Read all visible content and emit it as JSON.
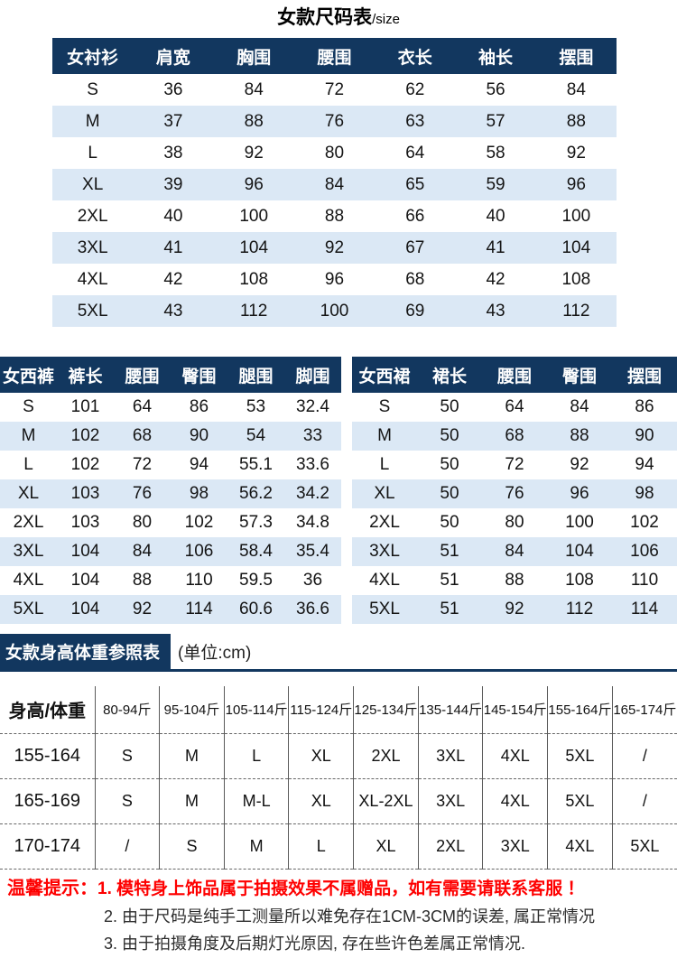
{
  "title": {
    "main": "女款尺码表",
    "suffix": "/size"
  },
  "shirt_table": {
    "headers": [
      "女衬衫",
      "肩宽",
      "胸围",
      "腰围",
      "衣长",
      "袖长",
      "摆围"
    ],
    "rows": [
      [
        "S",
        "36",
        "84",
        "72",
        "62",
        "56",
        "84"
      ],
      [
        "M",
        "37",
        "88",
        "76",
        "63",
        "57",
        "88"
      ],
      [
        "L",
        "38",
        "92",
        "80",
        "64",
        "58",
        "92"
      ],
      [
        "XL",
        "39",
        "96",
        "84",
        "65",
        "59",
        "96"
      ],
      [
        "2XL",
        "40",
        "100",
        "88",
        "66",
        "40",
        "100"
      ],
      [
        "3XL",
        "41",
        "104",
        "92",
        "67",
        "41",
        "104"
      ],
      [
        "4XL",
        "42",
        "108",
        "96",
        "68",
        "42",
        "108"
      ],
      [
        "5XL",
        "43",
        "112",
        "100",
        "69",
        "43",
        "112"
      ]
    ]
  },
  "trousers_table": {
    "headers": [
      "女西裤",
      "裤长",
      "腰围",
      "臀围",
      "腿围",
      "脚围"
    ],
    "rows": [
      [
        "S",
        "101",
        "64",
        "86",
        "53",
        "32.4"
      ],
      [
        "M",
        "102",
        "68",
        "90",
        "54",
        "33"
      ],
      [
        "L",
        "102",
        "72",
        "94",
        "55.1",
        "33.6"
      ],
      [
        "XL",
        "103",
        "76",
        "98",
        "56.2",
        "34.2"
      ],
      [
        "2XL",
        "103",
        "80",
        "102",
        "57.3",
        "34.8"
      ],
      [
        "3XL",
        "104",
        "84",
        "106",
        "58.4",
        "35.4"
      ],
      [
        "4XL",
        "104",
        "88",
        "110",
        "59.5",
        "36"
      ],
      [
        "5XL",
        "104",
        "92",
        "114",
        "60.6",
        "36.6"
      ]
    ]
  },
  "skirt_table": {
    "headers": [
      "女西裙",
      "裙长",
      "腰围",
      "臀围",
      "摆围"
    ],
    "rows": [
      [
        "S",
        "50",
        "64",
        "84",
        "86"
      ],
      [
        "M",
        "50",
        "68",
        "88",
        "90"
      ],
      [
        "L",
        "50",
        "72",
        "92",
        "94"
      ],
      [
        "XL",
        "50",
        "76",
        "96",
        "98"
      ],
      [
        "2XL",
        "50",
        "80",
        "100",
        "102"
      ],
      [
        "3XL",
        "51",
        "84",
        "104",
        "106"
      ],
      [
        "4XL",
        "51",
        "88",
        "108",
        "110"
      ],
      [
        "5XL",
        "51",
        "92",
        "112",
        "114"
      ]
    ]
  },
  "reference_banner": {
    "title": "女款身高体重参照表",
    "unit": "(单位:cm)"
  },
  "reference_table": {
    "headers": [
      "身高/体重",
      "80-94斤",
      "95-104斤",
      "105-114斤",
      "115-124斤",
      "125-134斤",
      "135-144斤",
      "145-154斤",
      "155-164斤",
      "165-174斤"
    ],
    "rows": [
      [
        "155-164",
        "S",
        "M",
        "L",
        "XL",
        "2XL",
        "3XL",
        "4XL",
        "5XL",
        "/"
      ],
      [
        "165-169",
        "S",
        "M",
        "M-L",
        "XL",
        "XL-2XL",
        "3XL",
        "4XL",
        "5XL",
        "/"
      ],
      [
        "170-174",
        "/",
        "S",
        "M",
        "L",
        "XL",
        "2XL",
        "3XL",
        "4XL",
        "5XL"
      ]
    ]
  },
  "tips": {
    "label": "温馨提示：",
    "line1": "1. 模特身上饰品属于拍摄效果不属赠品，如有需要请联系客服 ！",
    "line2": "2. 由于尺码是纯手工测量所以难免存在1CM-3CM的误差, 属正常情况",
    "line3": "3. 由于拍摄角度及后期灯光原因, 存在些许色差属正常情况."
  },
  "colors": {
    "navy": "#12375f",
    "light_blue": "#dbe8f5",
    "red": "#fe0000",
    "text": "#141414"
  }
}
